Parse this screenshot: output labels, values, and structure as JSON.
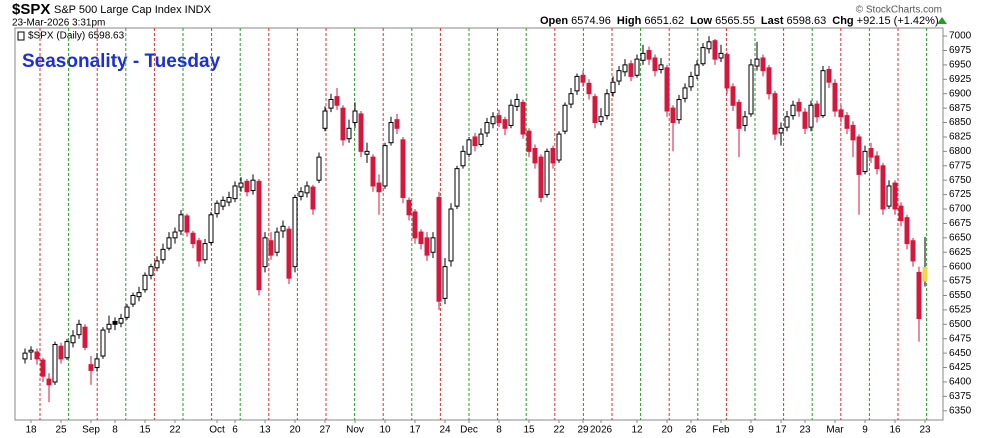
{
  "chart_data": {
    "type": "candlestick",
    "symbol": "$SPX",
    "name": "S&P 500 Large Cap Index INDX",
    "timestamp": "23-Mar-2026 3:31pm",
    "stats": [
      {
        "label": "Open",
        "value": 6574.96
      },
      {
        "label": "High",
        "value": 6651.62
      },
      {
        "label": "Low",
        "value": 6565.55
      },
      {
        "label": "Last",
        "value": 6598.63
      },
      {
        "label": "Chg",
        "value": "+92.15 (+1.42%)"
      }
    ],
    "credit": "© StockCharts.com",
    "legend": "$SPX (Daily) 6598.63",
    "annotation": "Seasonality - Tuesday",
    "up_color": "#000000",
    "down_color": "#d6173d",
    "last_bar_color": "#f2d640",
    "annotation_color": "#1a2fd6",
    "categories": [
      null,
      "18",
      null,
      null,
      null,
      null,
      "25",
      null,
      null,
      null,
      null,
      "Sep",
      null,
      null,
      null,
      "8",
      null,
      null,
      null,
      null,
      "15",
      null,
      null,
      null,
      null,
      "22",
      null,
      null,
      null,
      null,
      null,
      null,
      "Oct",
      null,
      null,
      "6",
      null,
      null,
      null,
      null,
      "13",
      null,
      null,
      null,
      null,
      "20",
      null,
      null,
      null,
      null,
      "27",
      null,
      null,
      null,
      null,
      "Nov",
      null,
      null,
      null,
      null,
      "10",
      null,
      null,
      null,
      null,
      "17",
      null,
      null,
      null,
      null,
      "24",
      null,
      null,
      null,
      "Dec",
      null,
      null,
      null,
      null,
      "8",
      null,
      null,
      null,
      null,
      "15",
      null,
      null,
      null,
      null,
      "22",
      null,
      null,
      null,
      "29",
      null,
      null,
      "2026",
      null,
      null,
      null,
      null,
      null,
      "12",
      null,
      null,
      null,
      null,
      "20",
      null,
      null,
      null,
      "26",
      null,
      null,
      null,
      null,
      "Feb",
      null,
      null,
      null,
      null,
      "9",
      null,
      null,
      null,
      null,
      "17",
      null,
      null,
      null,
      "23",
      null,
      null,
      null,
      null,
      "Mar",
      null,
      null,
      null,
      null,
      "9",
      null,
      null,
      null,
      null,
      "16",
      null,
      null,
      null,
      null,
      "23"
    ],
    "open": [
      6440,
      6452,
      6452,
      6438,
      6405,
      6400,
      6462,
      6442,
      6468,
      6482,
      6495,
      6430,
      6425,
      6445,
      6492,
      6505,
      6502,
      6512,
      6535,
      6548,
      6560,
      6585,
      6598,
      6612,
      6632,
      6650,
      6662,
      6688,
      6658,
      6645,
      6612,
      6642,
      6692,
      6705,
      6712,
      6718,
      6738,
      6748,
      6732,
      6748,
      6600,
      6645,
      6625,
      6662,
      6665,
      6600,
      6722,
      6728,
      6738,
      6750,
      6840,
      6875,
      6895,
      6875,
      6822,
      6850,
      6865,
      6795,
      6790,
      6745,
      6740,
      6815,
      6855,
      6820,
      6715,
      6695,
      6660,
      6650,
      6625,
      6720,
      6545,
      6610,
      6705,
      6775,
      6795,
      6825,
      6812,
      6832,
      6848,
      6862,
      6855,
      6845,
      6878,
      6885,
      6835,
      6805,
      6790,
      6725,
      6805,
      6785,
      6835,
      6882,
      6905,
      6932,
      6918,
      6895,
      6852,
      6862,
      6902,
      6922,
      6938,
      6952,
      6932,
      6958,
      6975,
      6962,
      6942,
      6945,
      6875,
      6855,
      6892,
      6912,
      6932,
      6952,
      6978,
      6992,
      6962,
      6968,
      6912,
      6885,
      6845,
      6865,
      6948,
      6962,
      6945,
      6900,
      6832,
      6842,
      6862,
      6885,
      6868,
      6842,
      6882,
      6862,
      6942,
      6918,
      6872,
      6862,
      6845,
      6825,
      6765,
      6805,
      6792,
      6775,
      6705,
      6745,
      6705,
      6685,
      6645,
      6590,
      6574.96
    ],
    "high": [
      6458,
      6462,
      6458,
      6442,
      6415,
      6470,
      6468,
      6475,
      6490,
      6508,
      6500,
      6445,
      6450,
      6495,
      6515,
      6512,
      6518,
      6535,
      6555,
      6565,
      6590,
      6605,
      6618,
      6640,
      6660,
      6668,
      6698,
      6692,
      6662,
      6650,
      6648,
      6695,
      6715,
      6722,
      6730,
      6748,
      6755,
      6752,
      6760,
      6752,
      6660,
      6660,
      6668,
      6680,
      6670,
      6725,
      6738,
      6748,
      6742,
      6798,
      6878,
      6900,
      6910,
      6880,
      6855,
      6885,
      6870,
      6815,
      6795,
      6760,
      6815,
      6860,
      6865,
      6825,
      6720,
      6700,
      6665,
      6660,
      6660,
      6730,
      6615,
      6710,
      6775,
      6810,
      6825,
      6832,
      6840,
      6858,
      6868,
      6872,
      6860,
      6890,
      6900,
      6890,
      6840,
      6812,
      6795,
      6805,
      6810,
      6835,
      6885,
      6910,
      6935,
      6940,
      6925,
      6900,
      6875,
      6908,
      6930,
      6948,
      6960,
      6958,
      6968,
      6985,
      6982,
      6968,
      6962,
      6950,
      6880,
      6898,
      6918,
      6938,
      6958,
      6988,
      7000,
      6995,
      6985,
      6972,
      6918,
      6890,
      6870,
      6960,
      6990,
      6968,
      6950,
      6905,
      6850,
      6870,
      6888,
      6892,
      6875,
      6888,
      6888,
      6948,
      6948,
      6925,
      6880,
      6868,
      6852,
      6830,
      6810,
      6815,
      6800,
      6780,
      6750,
      6750,
      6712,
      6690,
      6650,
      6600,
      6651.62
    ],
    "low": [
      6432,
      6438,
      6430,
      6400,
      6365,
      6395,
      6432,
      6438,
      6460,
      6475,
      6455,
      6395,
      6418,
      6440,
      6485,
      6490,
      6495,
      6508,
      6530,
      6540,
      6555,
      6578,
      6592,
      6605,
      6628,
      6640,
      6655,
      6652,
      6632,
      6600,
      6605,
      6638,
      6685,
      6698,
      6705,
      6712,
      6730,
      6722,
      6725,
      6550,
      6590,
      6612,
      6618,
      6650,
      6570,
      6590,
      6715,
      6720,
      6690,
      6745,
      6835,
      6868,
      6872,
      6810,
      6815,
      6840,
      6790,
      6780,
      6730,
      6690,
      6735,
      6810,
      6830,
      6710,
      6680,
      6640,
      6630,
      6610,
      6615,
      6525,
      6535,
      6600,
      6700,
      6770,
      6790,
      6800,
      6808,
      6825,
      6840,
      6842,
      6828,
      6840,
      6870,
      6822,
      6790,
      6770,
      6712,
      6720,
      6770,
      6780,
      6830,
      6875,
      6898,
      6912,
      6890,
      6840,
      6845,
      6855,
      6895,
      6915,
      6930,
      6922,
      6928,
      6950,
      6950,
      6930,
      6935,
      6860,
      6800,
      6848,
      6885,
      6905,
      6925,
      6948,
      6970,
      6950,
      6955,
      6900,
      6870,
      6790,
      6835,
      6860,
      6940,
      6930,
      6890,
      6820,
      6810,
      6835,
      6855,
      6860,
      6830,
      6835,
      6850,
      6858,
      6910,
      6860,
      6850,
      6830,
      6790,
      6690,
      6760,
      6780,
      6760,
      6690,
      6700,
      6690,
      6670,
      6630,
      6600,
      6470,
      6565.55
    ],
    "close": [
      6450,
      6455,
      6440,
      6410,
      6395,
      6465,
      6440,
      6470,
      6480,
      6500,
      6460,
      6420,
      6440,
      6490,
      6500,
      6500,
      6510,
      6530,
      6550,
      6555,
      6585,
      6600,
      6610,
      6630,
      6650,
      6660,
      6690,
      6660,
      6640,
      6610,
      6640,
      6690,
      6710,
      6715,
      6720,
      6740,
      6745,
      6730,
      6750,
      6560,
      6650,
      6620,
      6660,
      6670,
      6580,
      6720,
      6730,
      6740,
      6700,
      6790,
      6870,
      6890,
      6880,
      6820,
      6840,
      6870,
      6800,
      6800,
      6740,
      6730,
      6810,
      6850,
      6840,
      6720,
      6690,
      6650,
      6640,
      6620,
      6650,
      6540,
      6600,
      6700,
      6770,
      6800,
      6820,
      6810,
      6830,
      6850,
      6860,
      6850,
      6840,
      6880,
      6890,
      6830,
      6800,
      6780,
      6720,
      6800,
      6780,
      6830,
      6880,
      6900,
      6930,
      6920,
      6900,
      6850,
      6860,
      6900,
      6920,
      6940,
      6950,
      6930,
      6960,
      6970,
      6960,
      6940,
      6950,
      6870,
      6850,
      6890,
      6910,
      6930,
      6950,
      6980,
      6990,
      6960,
      6970,
      6910,
      6880,
      6840,
      6860,
      6950,
      6960,
      6940,
      6900,
      6830,
      6840,
      6860,
      6880,
      6870,
      6840,
      6880,
      6860,
      6940,
      6920,
      6870,
      6860,
      6840,
      6820,
      6760,
      6800,
      6790,
      6770,
      6700,
      6740,
      6700,
      6680,
      6640,
      6610,
      6510,
      6598.63
    ],
    "ylim": [
      6334,
      7014
    ],
    "yticks": [
      6350,
      6375,
      6400,
      6425,
      6450,
      6475,
      6500,
      6525,
      6550,
      6575,
      6600,
      6625,
      6650,
      6675,
      6700,
      6725,
      6750,
      6775,
      6800,
      6825,
      6850,
      6875,
      6900,
      6925,
      6950,
      6975,
      7000
    ],
    "grid": false
  }
}
